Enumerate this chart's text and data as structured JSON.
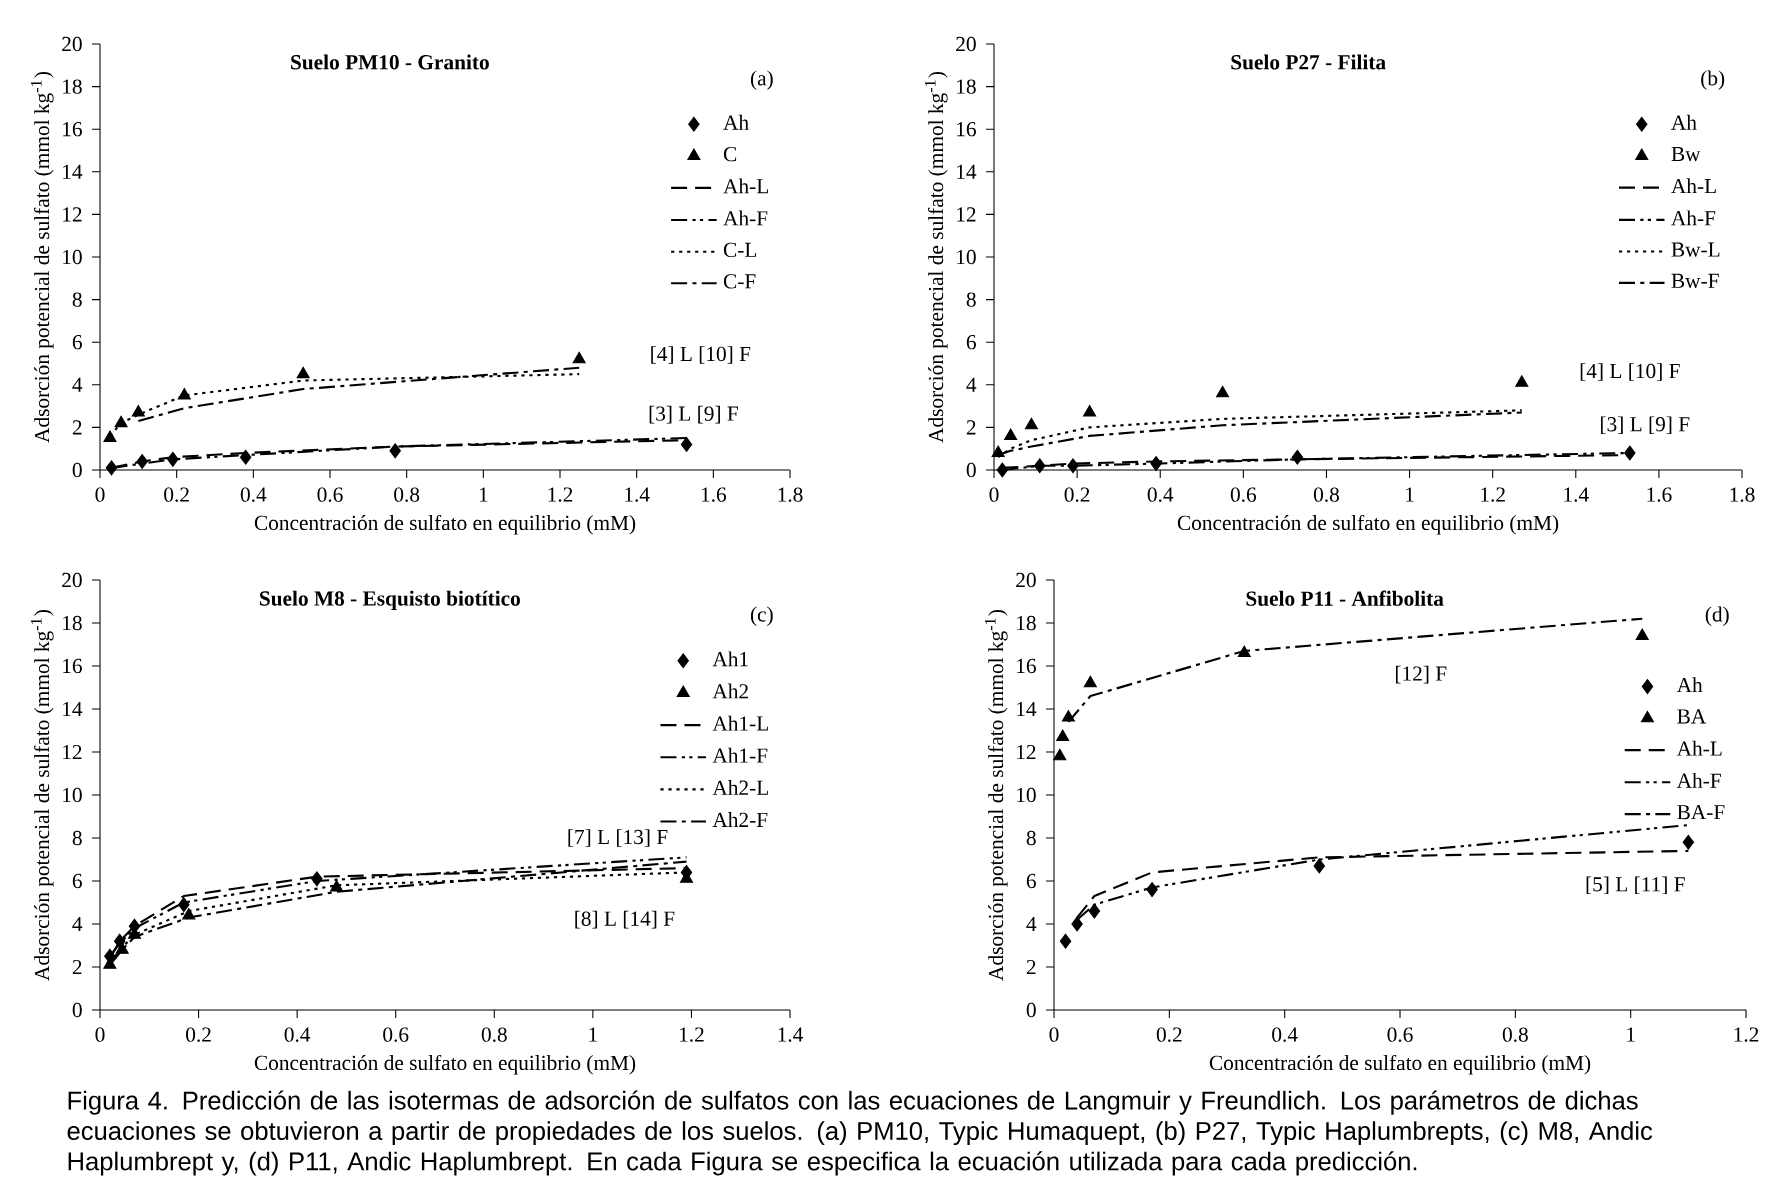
{
  "chart_data": [
    {
      "type": "scatter",
      "title": "Suelo PM10 - Granito",
      "xlabel": "Concentración de sulfato en equilibrio (mM)",
      "ylabel": "Adsorción potencial de sulfato (mmol kg$^{-1}$)",
      "xlim": [
        0,
        1.8
      ],
      "ylim": [
        0,
        20
      ],
      "xticks": [
        0,
        0.2,
        0.4,
        0.6,
        0.8,
        1,
        1.2,
        1.4,
        1.6,
        1.8
      ],
      "yticks": [
        0,
        2,
        4,
        6,
        8,
        10,
        12,
        14,
        16,
        18,
        20
      ],
      "legend": "top right",
      "annotations": [
        "(a)",
        "[4] L [10] F",
        "[3] L [9] F"
      ],
      "series": [
        {
          "name": "Ah",
          "type": "scatter",
          "marker": "diamond",
          "color": "#000000",
          "x": [
            0.03,
            0.11,
            0.19,
            0.38,
            0.77,
            1.53
          ],
          "values": [
            0.1,
            0.4,
            0.5,
            0.6,
            0.9,
            1.2
          ]
        },
        {
          "name": "C",
          "type": "scatter",
          "marker": "triangle",
          "color": "#000000",
          "x": [
            0.026,
            0.055,
            0.1,
            0.22,
            0.53,
            1.25
          ],
          "values": [
            1.5,
            2.2,
            2.7,
            3.5,
            4.5,
            5.2
          ]
        },
        {
          "name": "Ah-L",
          "type": "line",
          "line_style": "dashed",
          "color": "#000000",
          "x": [
            0.03,
            0.11,
            0.19,
            0.38,
            0.77,
            1.53
          ],
          "values": [
            0.1,
            0.4,
            0.6,
            0.8,
            1.1,
            1.4
          ]
        },
        {
          "name": "Ah-F",
          "type": "line",
          "line_style": "dashdotdot",
          "color": "#000000",
          "x": [
            0.03,
            0.11,
            0.19,
            0.38,
            0.77,
            1.53
          ],
          "values": [
            0.1,
            0.3,
            0.5,
            0.7,
            1.1,
            1.5
          ]
        },
        {
          "name": "C-L",
          "type": "line",
          "line_style": "dotted",
          "color": "#000000",
          "x": [
            0.026,
            0.055,
            0.1,
            0.22,
            0.53,
            1.25
          ],
          "values": [
            1.6,
            2.2,
            2.6,
            3.5,
            4.2,
            4.5
          ]
        },
        {
          "name": "C-F",
          "type": "line",
          "line_style": "dashdot",
          "color": "#000000",
          "x": [
            0.1,
            0.22,
            0.53,
            1.25
          ],
          "values": [
            2.3,
            2.9,
            3.8,
            4.8
          ]
        }
      ]
    },
    {
      "type": "scatter",
      "title": "Suelo P27 - Filita",
      "xlabel": "Concentración de sulfato en equilibrio (mM)",
      "ylabel": "Adsorción potencial de sulfato (mmol kg$^{-1}$)",
      "xlim": [
        0,
        1.8
      ],
      "ylim": [
        0,
        20
      ],
      "xticks": [
        0,
        0.2,
        0.4,
        0.6,
        0.8,
        1,
        1.2,
        1.4,
        1.6,
        1.8
      ],
      "yticks": [
        0,
        2,
        4,
        6,
        8,
        10,
        12,
        14,
        16,
        18,
        20
      ],
      "legend": "top right",
      "annotations": [
        "(b)",
        "[4] L [10] F",
        "[3] L [9] F"
      ],
      "series": [
        {
          "name": "Ah",
          "type": "scatter",
          "marker": "diamond",
          "color": "#000000",
          "x": [
            0.02,
            0.11,
            0.19,
            0.39,
            0.73,
            1.53
          ],
          "values": [
            0.0,
            0.2,
            0.2,
            0.3,
            0.6,
            0.8
          ]
        },
        {
          "name": "Bw",
          "type": "scatter",
          "marker": "triangle",
          "color": "#000000",
          "x": [
            0.01,
            0.04,
            0.09,
            0.23,
            0.55,
            1.27
          ],
          "values": [
            0.8,
            1.6,
            2.1,
            2.7,
            3.6,
            4.1
          ]
        },
        {
          "name": "Ah-L",
          "type": "line",
          "line_style": "dashed",
          "color": "#000000",
          "x": [
            0.02,
            0.11,
            0.19,
            0.39,
            0.73,
            1.53
          ],
          "values": [
            0.1,
            0.2,
            0.3,
            0.4,
            0.5,
            0.7
          ]
        },
        {
          "name": "Ah-F",
          "type": "line",
          "line_style": "dashdotdot",
          "color": "#000000",
          "x": [
            0.02,
            0.11,
            0.19,
            0.39,
            0.73,
            1.53
          ],
          "values": [
            0.0,
            0.2,
            0.2,
            0.3,
            0.5,
            0.8
          ]
        },
        {
          "name": "Bw-L",
          "type": "line",
          "line_style": "dotted",
          "color": "#000000",
          "x": [
            0.01,
            0.04,
            0.09,
            0.23,
            0.55,
            1.27
          ],
          "values": [
            0.6,
            1.0,
            1.4,
            2.0,
            2.4,
            2.8
          ]
        },
        {
          "name": "Bw-F",
          "type": "line",
          "line_style": "dashdot",
          "color": "#000000",
          "x": [
            0.01,
            0.04,
            0.09,
            0.23,
            0.55,
            1.27
          ],
          "values": [
            0.7,
            0.9,
            1.1,
            1.6,
            2.1,
            2.7
          ]
        }
      ]
    },
    {
      "type": "scatter",
      "title": "Suelo M8 - Esquisto biotítico",
      "xlabel": "Concentración de sulfato en equilibrio (mM)",
      "ylabel": "Adsorción potencial de sulfato (mmol kg$^{-1}$)",
      "xlim": [
        0,
        1.4
      ],
      "ylim": [
        0,
        20
      ],
      "xticks": [
        0,
        0.2,
        0.4,
        0.6,
        0.8,
        1,
        1.2,
        1.4
      ],
      "yticks": [
        0,
        2,
        4,
        6,
        8,
        10,
        12,
        14,
        16,
        18,
        20
      ],
      "legend": "top right",
      "annotations": [
        "(c)",
        "[7] L [13] F",
        "[8] L [14] F"
      ],
      "series": [
        {
          "name": "Ah1",
          "type": "scatter",
          "marker": "diamond",
          "color": "#000000",
          "x": [
            0.02,
            0.04,
            0.07,
            0.17,
            0.44,
            1.19
          ],
          "values": [
            2.5,
            3.2,
            3.9,
            4.9,
            6.1,
            6.4
          ]
        },
        {
          "name": "Ah2",
          "type": "scatter",
          "marker": "triangle",
          "color": "#000000",
          "x": [
            0.02,
            0.045,
            0.07,
            0.18,
            0.48,
            1.19
          ],
          "values": [
            2.1,
            2.8,
            3.5,
            4.4,
            5.7,
            6.1
          ]
        },
        {
          "name": "Ah1-L",
          "type": "line",
          "line_style": "dashed",
          "color": "#000000",
          "x": [
            0.02,
            0.04,
            0.07,
            0.17,
            0.44,
            1.19
          ],
          "values": [
            2.4,
            3.2,
            3.9,
            5.3,
            6.2,
            6.6
          ]
        },
        {
          "name": "Ah1-F",
          "type": "line",
          "line_style": "dashdotdot",
          "color": "#000000",
          "x": [
            0.02,
            0.04,
            0.07,
            0.17,
            0.44,
            1.19
          ],
          "values": [
            2.5,
            3.1,
            3.8,
            5.0,
            6.0,
            7.1
          ]
        },
        {
          "name": "Ah2-L",
          "type": "line",
          "line_style": "dotted",
          "color": "#000000",
          "x": [
            0.02,
            0.045,
            0.07,
            0.18,
            0.48,
            1.19
          ],
          "values": [
            2.2,
            2.9,
            3.5,
            4.6,
            5.8,
            6.4
          ]
        },
        {
          "name": "Ah2-F",
          "type": "line",
          "line_style": "dashdot",
          "color": "#000000",
          "x": [
            0.02,
            0.045,
            0.07,
            0.18,
            0.48,
            1.19
          ],
          "values": [
            2.1,
            2.8,
            3.4,
            4.3,
            5.5,
            6.9
          ]
        }
      ]
    },
    {
      "type": "scatter",
      "title": "Suelo P11 - Anfibolita",
      "xlabel": "Concentración de sulfato en equilibrio (mM)",
      "ylabel": "Adsorción potencial de sulfato (mmol kg$^{-1}$)",
      "xlim": [
        0,
        1.2
      ],
      "ylim": [
        0,
        20
      ],
      "xticks": [
        0,
        0.2,
        0.4,
        0.6,
        0.8,
        1,
        1.2
      ],
      "yticks": [
        0,
        2,
        4,
        6,
        8,
        10,
        12,
        14,
        16,
        18,
        20
      ],
      "legend": "right",
      "annotations": [
        "(d)",
        "[12] F",
        "[5] L [11] F",
        "Figura 4. Predicción de las isotermas de adsorción de sulfatos con las ecuaciones de Langmuir y Freundlich. Los parámetros de dichas ecuaciones se obtuvieron a partir de propiedades de los suelos. (a) PM10, Typic Humaquept, (b) P27, Typic Haplumbrepts, (c) M8, Andic Haplumbrept y, (d) P11, Andic Haplumbrept. En cada Figura se especifica la ecuación utilizada para cada predicción."
      ],
      "series": [
        {
          "name": "Ah",
          "type": "scatter",
          "marker": "diamond",
          "color": "#000000",
          "x": [
            0.02,
            0.04,
            0.07,
            0.17,
            0.46,
            1.1
          ],
          "values": [
            3.2,
            4.0,
            4.6,
            5.6,
            6.7,
            7.8
          ]
        },
        {
          "name": "BA",
          "type": "scatter",
          "marker": "triangle",
          "color": "#000000",
          "x": [
            0.01,
            0.015,
            0.025,
            0.063,
            0.33,
            1.02
          ],
          "values": [
            11.8,
            12.7,
            13.6,
            15.2,
            16.6,
            17.4
          ]
        },
        {
          "name": "Ah-L",
          "type": "line",
          "line_style": "dashed",
          "color": "#000000",
          "x": [
            0.04,
            0.07,
            0.17,
            0.46,
            1.1
          ],
          "values": [
            4.3,
            5.3,
            6.4,
            7.1,
            7.4
          ]
        },
        {
          "name": "Ah-F",
          "type": "line",
          "line_style": "dashdotdot",
          "color": "#000000",
          "x": [
            0.04,
            0.07,
            0.17,
            0.46,
            1.1
          ],
          "values": [
            4.2,
            4.9,
            5.7,
            7.0,
            8.6
          ]
        },
        {
          "name": "BA-F",
          "type": "line",
          "line_style": "dashdot",
          "color": "#000000",
          "x": [
            0.025,
            0.063,
            0.33,
            1.02
          ],
          "values": [
            13.4,
            14.6,
            16.7,
            18.2
          ]
        }
      ]
    }
  ]
}
